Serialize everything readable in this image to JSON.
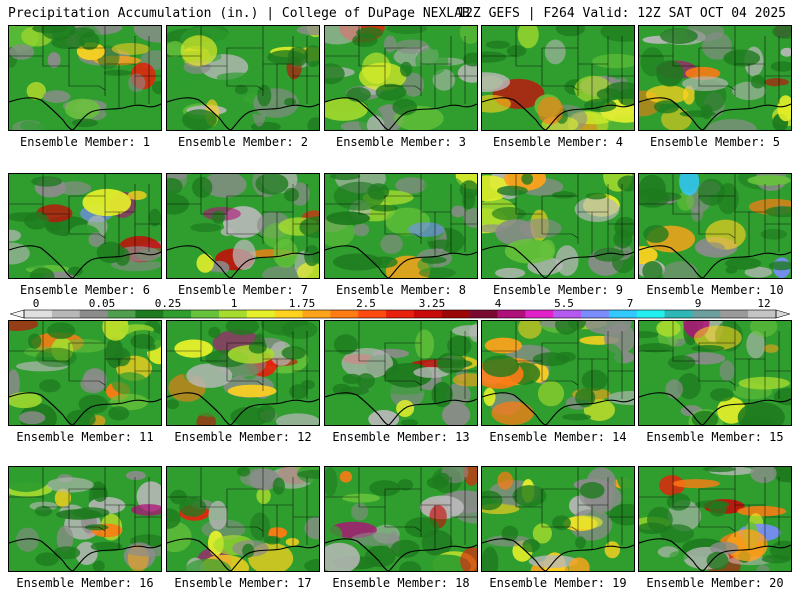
{
  "header": {
    "left": "Precipitation Accumulation (in.) | College of DuPage NEXLAB",
    "right": "12Z GEFS | F264 Valid: 12Z SAT OCT 04 2025"
  },
  "panels": [
    {
      "label": "Ensemble Member: 1"
    },
    {
      "label": "Ensemble Member: 2"
    },
    {
      "label": "Ensemble Member: 3"
    },
    {
      "label": "Ensemble Member: 4"
    },
    {
      "label": "Ensemble Member: 5"
    },
    {
      "label": "Ensemble Member: 6"
    },
    {
      "label": "Ensemble Member: 7"
    },
    {
      "label": "Ensemble Member: 8"
    },
    {
      "label": "Ensemble Member: 9"
    },
    {
      "label": "Ensemble Member: 10"
    },
    {
      "label": "Ensemble Member: 11"
    },
    {
      "label": "Ensemble Member: 12"
    },
    {
      "label": "Ensemble Member: 13"
    },
    {
      "label": "Ensemble Member: 14"
    },
    {
      "label": "Ensemble Member: 15"
    },
    {
      "label": "Ensemble Member: 16"
    },
    {
      "label": "Ensemble Member: 17"
    },
    {
      "label": "Ensemble Member: 18"
    },
    {
      "label": "Ensemble Member: 19"
    },
    {
      "label": "Ensemble Member: 20"
    }
  ],
  "scale": {
    "labels": [
      "0",
      "0.05",
      "0.25",
      "1",
      "1.75",
      "2.5",
      "3.25",
      "4",
      "5.5",
      "7",
      "9",
      "12"
    ],
    "colors": [
      "#e0e0e0",
      "#b8b8b8",
      "#8c8c8c",
      "#4f9f4f",
      "#1e7a1e",
      "#2f9e2f",
      "#66c23a",
      "#a6dc2e",
      "#e6f02a",
      "#ffd21f",
      "#ffa31a",
      "#ff7b14",
      "#ff4a10",
      "#e8200c",
      "#c80a0a",
      "#9c0606",
      "#7a0a30",
      "#b0107a",
      "#e022c8",
      "#b45af0",
      "#7a8cff",
      "#33c8ff",
      "#22f0f0",
      "#2fb6b6",
      "#6e9f9f",
      "#9a9a9a",
      "#c4c4c4"
    ]
  }
}
